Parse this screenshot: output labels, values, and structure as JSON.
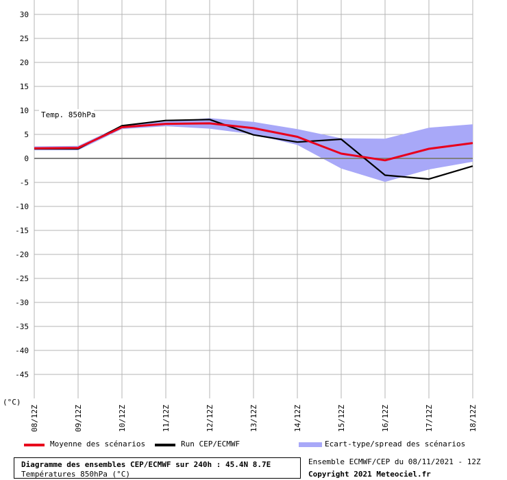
{
  "chart_data": {
    "type": "line",
    "title": "Diagramme des ensembles CEP/ECMWF sur 240h : 45.4N 8.7E",
    "subtitle": "Températures 850hPa (°C)",
    "annotation": "Temp. 850hPa",
    "ylabel": "(°C)",
    "xlabel": "",
    "ylim": [
      -50,
      30
    ],
    "yticks": [
      30,
      25,
      20,
      15,
      10,
      5,
      0,
      -5,
      -10,
      -15,
      -20,
      -25,
      -30,
      -35,
      -40,
      -45
    ],
    "categories": [
      "08/12Z",
      "09/12Z",
      "10/12Z",
      "11/12Z",
      "12/12Z",
      "13/12Z",
      "14/12Z",
      "15/12Z",
      "16/12Z",
      "17/12Z",
      "18/12Z"
    ],
    "grid": true,
    "legend_position": "bottom",
    "series": [
      {
        "name": "Moyenne des scénarios",
        "color": "#e8001c",
        "kind": "line",
        "values": [
          2.1,
          2.2,
          6.5,
          7.2,
          7.3,
          6.3,
          4.5,
          1.0,
          -0.4,
          2.0,
          3.2
        ]
      },
      {
        "name": "Run CEP/ECMWF",
        "color": "#000000",
        "kind": "line",
        "values": [
          2.0,
          2.0,
          6.8,
          7.9,
          8.1,
          4.9,
          3.4,
          4.0,
          -3.5,
          -4.3,
          -1.6
        ]
      },
      {
        "name": "Ecart-type/spread des scénarios",
        "color": "#a8a8f8",
        "kind": "band",
        "upper": [
          2.5,
          2.6,
          6.9,
          7.7,
          8.4,
          7.6,
          6.1,
          4.2,
          4.1,
          6.4,
          7.1
        ],
        "lower": [
          1.7,
          1.7,
          6.1,
          6.7,
          6.2,
          5.0,
          2.8,
          -2.1,
          -4.9,
          -2.3,
          -0.7
        ]
      }
    ]
  },
  "footer": {
    "run_info": "Ensemble ECMWF/CEP du 08/11/2021 - 12Z",
    "copyright": "Copyright 2021 Meteociel.fr"
  }
}
